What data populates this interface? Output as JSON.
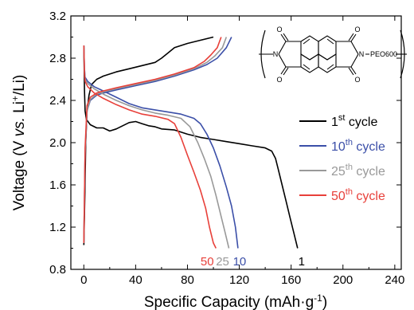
{
  "chart_data": {
    "type": "line",
    "title": "",
    "xlabel_main": "Specific Capacity (mAh·g",
    "xlabel_sup": "-1",
    "xlabel_end": ")",
    "ylabel_pre": "Voltage (V ",
    "ylabel_vs": "vs.",
    "ylabel_li": " Li",
    "ylabel_sup": "+",
    "ylabel_end": "/Li)",
    "xlim": [
      -10,
      245
    ],
    "ylim": [
      0.8,
      3.2
    ],
    "xticks": [
      0,
      40,
      80,
      120,
      160,
      200,
      240
    ],
    "yticks": [
      0.8,
      1.2,
      1.6,
      2.0,
      2.4,
      2.8,
      3.2
    ],
    "ytick_labels": [
      "0.8",
      "1.2",
      "1.6",
      "2.0",
      "2.4",
      "2.8",
      "3.2"
    ],
    "legend_position": "right",
    "structure_labels": {
      "o": "O",
      "n": "N",
      "peo": "PEO600"
    },
    "series": [
      {
        "legend_num": "1",
        "legend_sup": "st",
        "legend_text": " cycle",
        "end_label": "1",
        "color": "#000000",
        "discharge": [
          [
            0,
            2.92
          ],
          [
            0.5,
            2.5
          ],
          [
            1,
            2.3
          ],
          [
            2,
            2.22
          ],
          [
            5,
            2.17
          ],
          [
            10,
            2.14
          ],
          [
            15,
            2.14
          ],
          [
            20,
            2.11
          ],
          [
            25,
            2.13
          ],
          [
            30,
            2.16
          ],
          [
            35,
            2.19
          ],
          [
            40,
            2.2
          ],
          [
            45,
            2.18
          ],
          [
            50,
            2.16
          ],
          [
            55,
            2.15
          ],
          [
            60,
            2.13
          ],
          [
            70,
            2.12
          ],
          [
            80,
            2.08
          ],
          [
            90,
            2.05
          ],
          [
            100,
            2.03
          ],
          [
            110,
            2.01
          ],
          [
            120,
            1.99
          ],
          [
            130,
            1.97
          ],
          [
            140,
            1.95
          ],
          [
            145,
            1.92
          ],
          [
            148,
            1.85
          ],
          [
            150,
            1.75
          ],
          [
            153,
            1.6
          ],
          [
            156,
            1.45
          ],
          [
            159,
            1.3
          ],
          [
            162,
            1.15
          ],
          [
            165,
            1.0
          ]
        ],
        "charge": [
          [
            0,
            1.03
          ],
          [
            0.8,
            1.5
          ],
          [
            1.5,
            2.0
          ],
          [
            2.5,
            2.3
          ],
          [
            4,
            2.45
          ],
          [
            6,
            2.55
          ],
          [
            10,
            2.6
          ],
          [
            15,
            2.63
          ],
          [
            25,
            2.67
          ],
          [
            35,
            2.7
          ],
          [
            45,
            2.73
          ],
          [
            55,
            2.76
          ],
          [
            60,
            2.8
          ],
          [
            65,
            2.85
          ],
          [
            70,
            2.9
          ],
          [
            80,
            2.94
          ],
          [
            90,
            2.97
          ],
          [
            100,
            3.0
          ]
        ]
      },
      {
        "legend_num": "10",
        "legend_sup": "th",
        "legend_text": " cycle",
        "end_label": "10",
        "color": "#3b4fa8",
        "discharge": [
          [
            0,
            2.92
          ],
          [
            0.5,
            2.7
          ],
          [
            1,
            2.62
          ],
          [
            3,
            2.58
          ],
          [
            8,
            2.53
          ],
          [
            15,
            2.49
          ],
          [
            25,
            2.43
          ],
          [
            35,
            2.37
          ],
          [
            45,
            2.33
          ],
          [
            55,
            2.31
          ],
          [
            65,
            2.29
          ],
          [
            75,
            2.27
          ],
          [
            85,
            2.23
          ],
          [
            90,
            2.18
          ],
          [
            95,
            2.08
          ],
          [
            100,
            1.95
          ],
          [
            105,
            1.78
          ],
          [
            110,
            1.58
          ],
          [
            114,
            1.4
          ],
          [
            117,
            1.2
          ],
          [
            119,
            1.0
          ]
        ],
        "charge": [
          [
            0,
            1.05
          ],
          [
            1,
            1.9
          ],
          [
            2.5,
            2.3
          ],
          [
            5,
            2.4
          ],
          [
            10,
            2.45
          ],
          [
            15,
            2.47
          ],
          [
            25,
            2.5
          ],
          [
            40,
            2.54
          ],
          [
            55,
            2.58
          ],
          [
            70,
            2.63
          ],
          [
            85,
            2.69
          ],
          [
            95,
            2.74
          ],
          [
            103,
            2.8
          ],
          [
            110,
            2.9
          ],
          [
            114,
            3.0
          ]
        ]
      },
      {
        "legend_num": "25",
        "legend_sup": "th",
        "legend_text": " cycle",
        "end_label": "25",
        "color": "#999999",
        "discharge": [
          [
            0,
            2.92
          ],
          [
            0.5,
            2.68
          ],
          [
            1,
            2.6
          ],
          [
            3,
            2.56
          ],
          [
            8,
            2.51
          ],
          [
            15,
            2.46
          ],
          [
            25,
            2.4
          ],
          [
            35,
            2.35
          ],
          [
            45,
            2.31
          ],
          [
            55,
            2.28
          ],
          [
            65,
            2.26
          ],
          [
            75,
            2.23
          ],
          [
            82,
            2.15
          ],
          [
            88,
            2.0
          ],
          [
            93,
            1.85
          ],
          [
            98,
            1.68
          ],
          [
            102,
            1.5
          ],
          [
            106,
            1.3
          ],
          [
            109,
            1.15
          ],
          [
            112,
            1.0
          ]
        ],
        "charge": [
          [
            0,
            1.05
          ],
          [
            1,
            1.9
          ],
          [
            2.5,
            2.3
          ],
          [
            5,
            2.41
          ],
          [
            10,
            2.46
          ],
          [
            15,
            2.48
          ],
          [
            25,
            2.51
          ],
          [
            40,
            2.55
          ],
          [
            55,
            2.59
          ],
          [
            70,
            2.64
          ],
          [
            85,
            2.7
          ],
          [
            95,
            2.76
          ],
          [
            101,
            2.82
          ],
          [
            107,
            2.9
          ],
          [
            110,
            3.0
          ]
        ]
      },
      {
        "legend_num": "50",
        "legend_sup": "th",
        "legend_text": " cycle",
        "end_label": "50",
        "color": "#e8403a",
        "discharge": [
          [
            0,
            2.92
          ],
          [
            0.5,
            2.65
          ],
          [
            1,
            2.58
          ],
          [
            3,
            2.53
          ],
          [
            8,
            2.47
          ],
          [
            15,
            2.42
          ],
          [
            25,
            2.36
          ],
          [
            35,
            2.31
          ],
          [
            45,
            2.27
          ],
          [
            55,
            2.25
          ],
          [
            65,
            2.22
          ],
          [
            70,
            2.18
          ],
          [
            75,
            2.05
          ],
          [
            80,
            1.88
          ],
          [
            85,
            1.72
          ],
          [
            90,
            1.55
          ],
          [
            94,
            1.38
          ],
          [
            97,
            1.2
          ],
          [
            100,
            1.05
          ],
          [
            102,
            1.0
          ]
        ],
        "charge": [
          [
            0,
            1.05
          ],
          [
            1,
            1.95
          ],
          [
            2.5,
            2.35
          ],
          [
            5,
            2.43
          ],
          [
            10,
            2.47
          ],
          [
            15,
            2.49
          ],
          [
            25,
            2.52
          ],
          [
            40,
            2.56
          ],
          [
            55,
            2.6
          ],
          [
            70,
            2.65
          ],
          [
            85,
            2.71
          ],
          [
            93,
            2.77
          ],
          [
            98,
            2.83
          ],
          [
            103,
            2.9
          ],
          [
            106,
            3.0
          ]
        ]
      }
    ]
  }
}
